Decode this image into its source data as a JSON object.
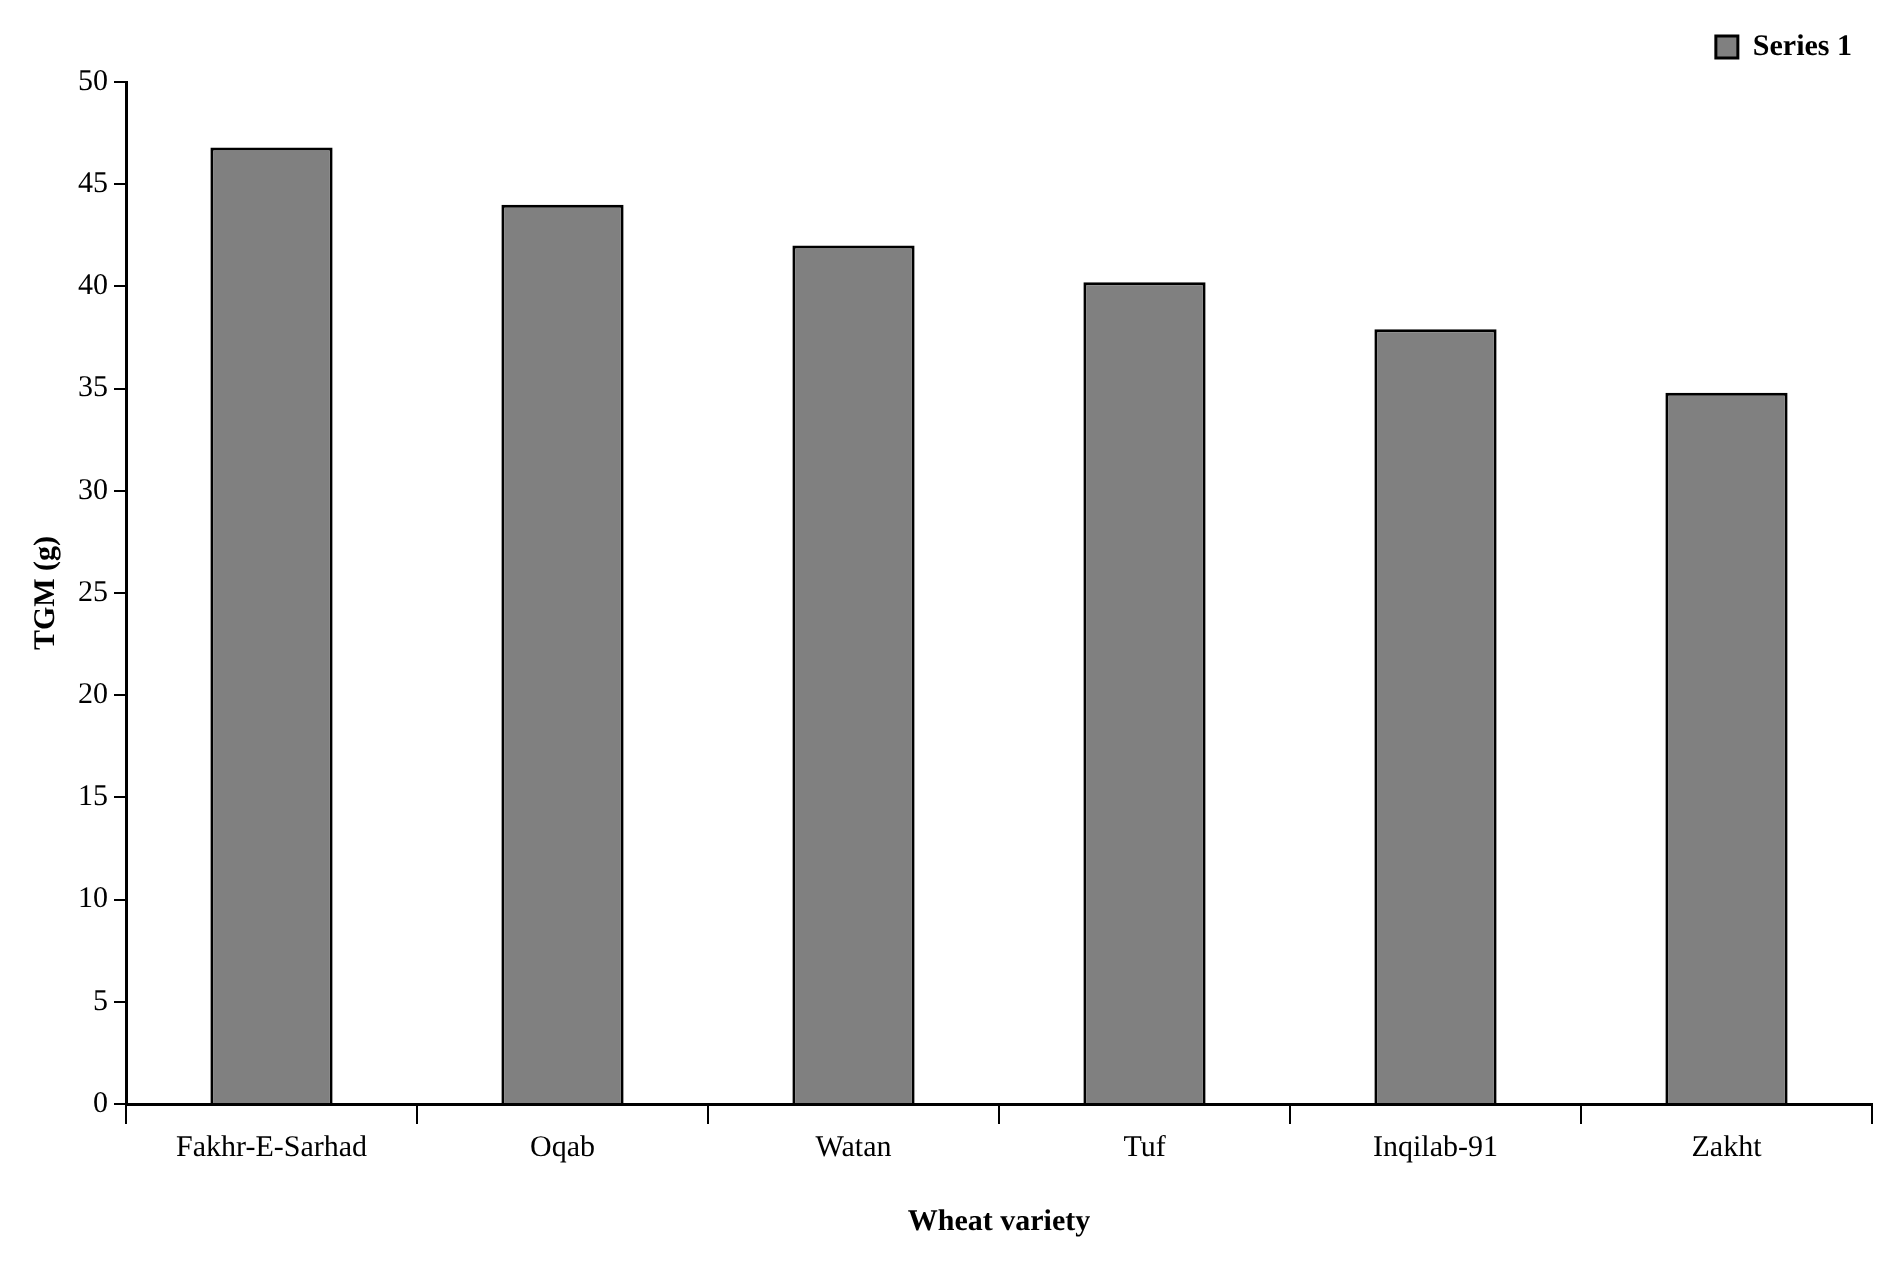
{
  "chart_data": {
    "type": "bar",
    "xlabel": "Wheat variety",
    "ylabel": "TGM (g)",
    "categories": [
      "Fakhr-E-Sarhad",
      "Oqab",
      "Watan",
      "Tuf",
      "Inqilab-91",
      "Zakht"
    ],
    "series": [
      {
        "name": "Series 1",
        "color": "#808080",
        "values": [
          46.8,
          44.0,
          42.0,
          40.2,
          37.9,
          34.8
        ]
      }
    ],
    "ylim": [
      0,
      50
    ],
    "yticks": [
      0,
      5,
      10,
      15,
      20,
      25,
      30,
      35,
      40,
      45,
      50
    ],
    "grid": false,
    "legend": "top right"
  }
}
